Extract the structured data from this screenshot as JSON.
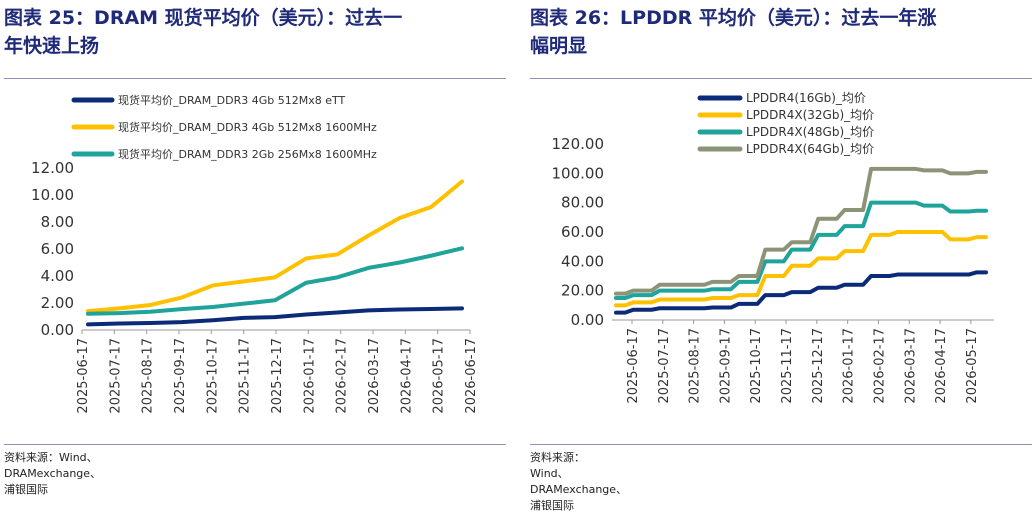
{
  "left": {
    "title_line1": "图表 25：DRAM 现货平均价（美元）：过去一",
    "title_line2": "年快速上扬",
    "source": "资料来源：Wind、DRAMexchange、浦银国际"
  },
  "right": {
    "title_line1": "图表 26：LPDDR 平均价（美元）：过去一年涨",
    "title_line2": "幅明显",
    "source": "资料来源： Wind、DRAMexchange、浦银国际"
  },
  "chart_data": [
    {
      "type": "line",
      "title": "图表 25：DRAM 现货平均价（美元）：过去一年快速上扬",
      "ylim": [
        0,
        12
      ],
      "yticks": [
        "0.00",
        "2.00",
        "4.00",
        "6.00",
        "8.00",
        "10.00",
        "12.00"
      ],
      "xticks": [
        "2025-06-17",
        "2025-07-17",
        "2025-08-17",
        "2025-09-17",
        "2025-10-17",
        "2025-11-17",
        "2025-12-17",
        "2026-01-17",
        "2026-02-17",
        "2026-03-17",
        "2026-04-17",
        "2026-05-17",
        "2026-06-17"
      ],
      "legend_position": "top-left",
      "grid": false,
      "series": [
        {
          "name": "现货平均价_DRAM_DDR3 4Gb 512Mx8 eTT",
          "color": "#0b2a78",
          "values": [
            0.42,
            0.48,
            0.52,
            0.58,
            0.72,
            0.9,
            0.95,
            1.15,
            1.3,
            1.45,
            1.52,
            1.56,
            1.6
          ]
        },
        {
          "name": "现货平均价_DRAM_DDR3 4Gb 512Mx8 1600MHz",
          "color": "#ffc000",
          "values": [
            1.4,
            1.6,
            1.85,
            2.4,
            3.3,
            3.6,
            3.9,
            5.3,
            5.6,
            7.0,
            8.3,
            9.1,
            11.0
          ]
        },
        {
          "name": "现货平均价_DRAM_DDR3 2Gb 256Mx8 1600MHz",
          "color": "#1fa39a",
          "values": [
            1.2,
            1.25,
            1.35,
            1.55,
            1.7,
            1.95,
            2.2,
            3.5,
            3.9,
            4.6,
            5.0,
            5.5,
            6.05
          ]
        }
      ]
    },
    {
      "type": "line",
      "title": "图表 26：LPDDR 平均价（美元）：过去一年涨幅明显",
      "ylim": [
        0,
        120
      ],
      "yticks": [
        "0.00",
        "20.00",
        "40.00",
        "60.00",
        "80.00",
        "100.00",
        "120.00"
      ],
      "xticks": [
        "2025-06-17",
        "2025-07-17",
        "2025-08-17",
        "2025-09-17",
        "2025-10-17",
        "2025-11-17",
        "2025-12-17",
        "2026-01-17",
        "2026-02-17",
        "2026-03-17",
        "2026-04-17",
        "2026-05-17"
      ],
      "legend_position": "top-left",
      "grid": false,
      "series": [
        {
          "name": "LPDDR4(16Gb)_均价",
          "color": "#0b2a78",
          "values": [
            5,
            7,
            8,
            8,
            8.5,
            11,
            17,
            19,
            22,
            24,
            30,
            31,
            31,
            31,
            32.5
          ]
        },
        {
          "name": "LPDDR4X(32Gb)_均价",
          "color": "#ffc000",
          "values": [
            10,
            12,
            14,
            14,
            15,
            17,
            30,
            37,
            42,
            47,
            58,
            60,
            60,
            55,
            56.5
          ]
        },
        {
          "name": "LPDDR4X(48Gb)_均价",
          "color": "#1fa39a",
          "values": [
            15,
            17,
            20,
            20,
            21,
            26,
            40,
            48,
            58,
            64,
            80,
            80,
            78,
            74,
            74.5
          ]
        },
        {
          "name": "LPDDR4X(64Gb)_均价",
          "color": "#8c9477",
          "values": [
            18,
            20,
            24,
            24,
            26,
            30,
            48,
            53,
            69,
            75,
            103,
            103,
            102,
            100,
            101
          ]
        }
      ]
    }
  ]
}
